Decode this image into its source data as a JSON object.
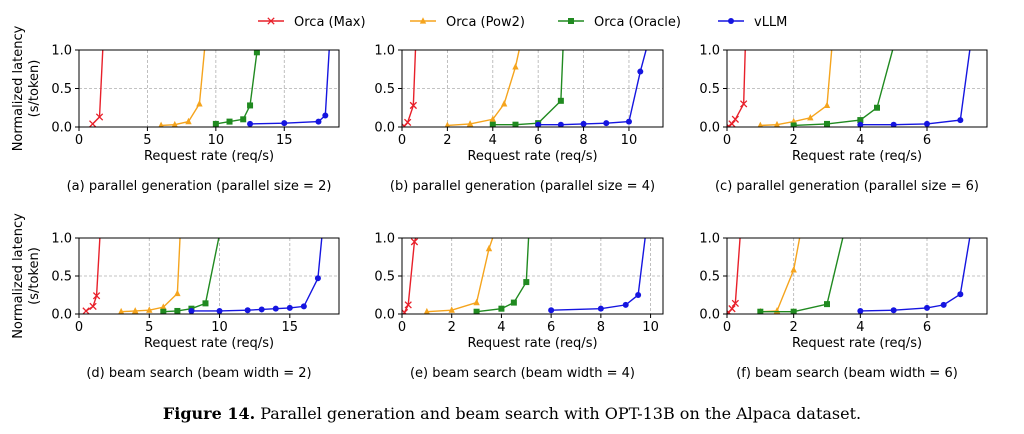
{
  "figure_caption": {
    "label": "Figure 14.",
    "text": "Parallel generation and beam search with OPT-13B on the Alpaca dataset."
  },
  "legend": {
    "entries": [
      {
        "name": "Orca (Max)",
        "color": "#e8202a",
        "marker": "x"
      },
      {
        "name": "Orca (Pow2)",
        "color": "#f5a41d",
        "marker": "triangle"
      },
      {
        "name": "Orca (Oracle)",
        "color": "#208a20",
        "marker": "square"
      },
      {
        "name": "vLLM",
        "color": "#1515e0",
        "marker": "circle"
      }
    ]
  },
  "chart_data": [
    {
      "type": "line",
      "subcaption": "(a) parallel generation (parallel size = 2)",
      "xlabel": "Request rate (req/s)",
      "ylabel": "Normalized latency\n(s/token)",
      "xlim": [
        0,
        19
      ],
      "ylim": [
        0,
        1.0
      ],
      "xticks": [
        0,
        5,
        10,
        15
      ],
      "yticks": [
        0.0,
        0.5,
        1.0
      ],
      "grid": true,
      "series": [
        {
          "name": "Orca (Max)",
          "x": [
            1.0,
            1.5,
            1.75
          ],
          "y": [
            0.04,
            0.13,
            1.05
          ]
        },
        {
          "name": "Orca (Pow2)",
          "x": [
            6.0,
            7.0,
            8.0,
            8.8,
            9.2
          ],
          "y": [
            0.02,
            0.03,
            0.07,
            0.3,
            1.05
          ]
        },
        {
          "name": "Orca (Oracle)",
          "x": [
            10.0,
            11.0,
            12.0,
            12.5,
            13.0
          ],
          "y": [
            0.04,
            0.07,
            0.1,
            0.28,
            0.97
          ]
        },
        {
          "name": "vLLM",
          "x": [
            12.5,
            15.0,
            17.5,
            18.0,
            18.3
          ],
          "y": [
            0.04,
            0.05,
            0.07,
            0.15,
            1.05
          ]
        }
      ]
    },
    {
      "type": "line",
      "subcaption": "(b) parallel generation (parallel size = 4)",
      "xlabel": "Request rate (req/s)",
      "ylabel": "",
      "xlim": [
        0,
        11.5
      ],
      "ylim": [
        0,
        1.0
      ],
      "xticks": [
        0,
        2,
        4,
        6,
        8,
        10
      ],
      "yticks": [
        0.0,
        0.5,
        1.0
      ],
      "grid": true,
      "series": [
        {
          "name": "Orca (Max)",
          "x": [
            0.1,
            0.25,
            0.5,
            0.6
          ],
          "y": [
            0.01,
            0.06,
            0.28,
            1.05
          ]
        },
        {
          "name": "Orca (Pow2)",
          "x": [
            2.0,
            3.0,
            4.0,
            4.5,
            5.0,
            5.2
          ],
          "y": [
            0.02,
            0.04,
            0.1,
            0.3,
            0.78,
            1.05
          ]
        },
        {
          "name": "Orca (Oracle)",
          "x": [
            4.0,
            5.0,
            6.0,
            7.0,
            7.1
          ],
          "y": [
            0.03,
            0.03,
            0.05,
            0.34,
            1.05
          ]
        },
        {
          "name": "vLLM",
          "x": [
            6.0,
            7.0,
            8.0,
            9.0,
            10.0,
            10.5,
            10.8
          ],
          "y": [
            0.03,
            0.03,
            0.04,
            0.05,
            0.07,
            0.72,
            1.05
          ]
        }
      ]
    },
    {
      "type": "line",
      "subcaption": "(c) parallel generation (parallel size = 6)",
      "xlabel": "Request rate (req/s)",
      "ylabel": "",
      "xlim": [
        0,
        7.8
      ],
      "ylim": [
        0,
        1.0
      ],
      "xticks": [
        0,
        2,
        4,
        6
      ],
      "yticks": [
        0.0,
        0.5,
        1.0
      ],
      "grid": true,
      "series": [
        {
          "name": "Orca (Max)",
          "x": [
            0.05,
            0.15,
            0.25,
            0.5,
            0.55
          ],
          "y": [
            0.01,
            0.04,
            0.1,
            0.3,
            1.05
          ]
        },
        {
          "name": "Orca (Pow2)",
          "x": [
            1.0,
            1.5,
            2.0,
            2.5,
            3.0,
            3.15
          ],
          "y": [
            0.02,
            0.03,
            0.07,
            0.12,
            0.28,
            1.05
          ]
        },
        {
          "name": "Orca (Oracle)",
          "x": [
            2.0,
            3.0,
            4.0,
            4.5,
            5.0
          ],
          "y": [
            0.02,
            0.04,
            0.09,
            0.25,
            1.05
          ]
        },
        {
          "name": "vLLM",
          "x": [
            4.0,
            5.0,
            6.0,
            7.0,
            7.3
          ],
          "y": [
            0.03,
            0.03,
            0.04,
            0.09,
            1.05
          ]
        }
      ]
    },
    {
      "type": "line",
      "subcaption": "(d) beam search (beam width = 2)",
      "xlabel": "Request rate (req/s)",
      "ylabel": "Normalized latency\n(s/token)",
      "xlim": [
        0,
        18.5
      ],
      "ylim": [
        0,
        1.0
      ],
      "xticks": [
        0,
        5,
        10,
        15
      ],
      "yticks": [
        0.0,
        0.5,
        1.0
      ],
      "grid": true,
      "series": [
        {
          "name": "Orca (Max)",
          "x": [
            0.5,
            1.0,
            1.25,
            1.5
          ],
          "y": [
            0.04,
            0.1,
            0.24,
            1.05
          ]
        },
        {
          "name": "Orca (Pow2)",
          "x": [
            3.0,
            4.0,
            5.0,
            6.0,
            7.0,
            7.2
          ],
          "y": [
            0.03,
            0.04,
            0.05,
            0.09,
            0.27,
            1.05
          ]
        },
        {
          "name": "Orca (Oracle)",
          "x": [
            6.0,
            7.0,
            8.0,
            9.0,
            10.0
          ],
          "y": [
            0.03,
            0.04,
            0.07,
            0.14,
            1.05
          ]
        },
        {
          "name": "vLLM",
          "x": [
            8.0,
            10.0,
            12.0,
            13.0,
            14.0,
            15.0,
            16.0,
            17.0,
            17.3
          ],
          "y": [
            0.04,
            0.04,
            0.05,
            0.06,
            0.07,
            0.08,
            0.1,
            0.47,
            1.05
          ]
        }
      ]
    },
    {
      "type": "line",
      "subcaption": "(e) beam search (beam width = 4)",
      "xlabel": "Request rate (req/s)",
      "ylabel": "",
      "xlim": [
        0,
        10.5
      ],
      "ylim": [
        0,
        1.0
      ],
      "xticks": [
        0,
        2,
        4,
        6,
        8,
        10
      ],
      "yticks": [
        0.0,
        0.5,
        1.0
      ],
      "grid": true,
      "series": [
        {
          "name": "Orca (Max)",
          "x": [
            0.1,
            0.25,
            0.5,
            0.6
          ],
          "y": [
            0.02,
            0.12,
            0.95,
            1.05
          ]
        },
        {
          "name": "Orca (Pow2)",
          "x": [
            1.0,
            2.0,
            3.0,
            3.5,
            3.7
          ],
          "y": [
            0.03,
            0.05,
            0.15,
            0.86,
            1.05
          ]
        },
        {
          "name": "Orca (Oracle)",
          "x": [
            3.0,
            4.0,
            4.5,
            5.0,
            5.1
          ],
          "y": [
            0.03,
            0.07,
            0.15,
            0.42,
            1.05
          ]
        },
        {
          "name": "vLLM",
          "x": [
            6.0,
            8.0,
            9.0,
            9.5,
            9.8
          ],
          "y": [
            0.05,
            0.07,
            0.12,
            0.25,
            1.05
          ]
        }
      ]
    },
    {
      "type": "line",
      "subcaption": "(f) beam search (beam width = 6)",
      "xlabel": "Request rate (req/s)",
      "ylabel": "",
      "xlim": [
        0,
        7.8
      ],
      "ylim": [
        0,
        1.0
      ],
      "xticks": [
        0,
        2,
        4,
        6
      ],
      "yticks": [
        0.0,
        0.5,
        1.0
      ],
      "grid": true,
      "series": [
        {
          "name": "Orca (Max)",
          "x": [
            0.05,
            0.15,
            0.25,
            0.4,
            0.45
          ],
          "y": [
            0.02,
            0.07,
            0.14,
            1.05,
            1.05
          ]
        },
        {
          "name": "Orca (Pow2)",
          "x": [
            1.0,
            1.5,
            2.0,
            2.2
          ],
          "y": [
            0.03,
            0.04,
            0.58,
            1.05
          ]
        },
        {
          "name": "Orca (Oracle)",
          "x": [
            1.0,
            2.0,
            3.0,
            3.5
          ],
          "y": [
            0.03,
            0.03,
            0.13,
            1.05
          ]
        },
        {
          "name": "vLLM",
          "x": [
            4.0,
            5.0,
            6.0,
            6.5,
            7.0,
            7.3
          ],
          "y": [
            0.04,
            0.05,
            0.08,
            0.12,
            0.26,
            1.05
          ]
        }
      ]
    }
  ]
}
